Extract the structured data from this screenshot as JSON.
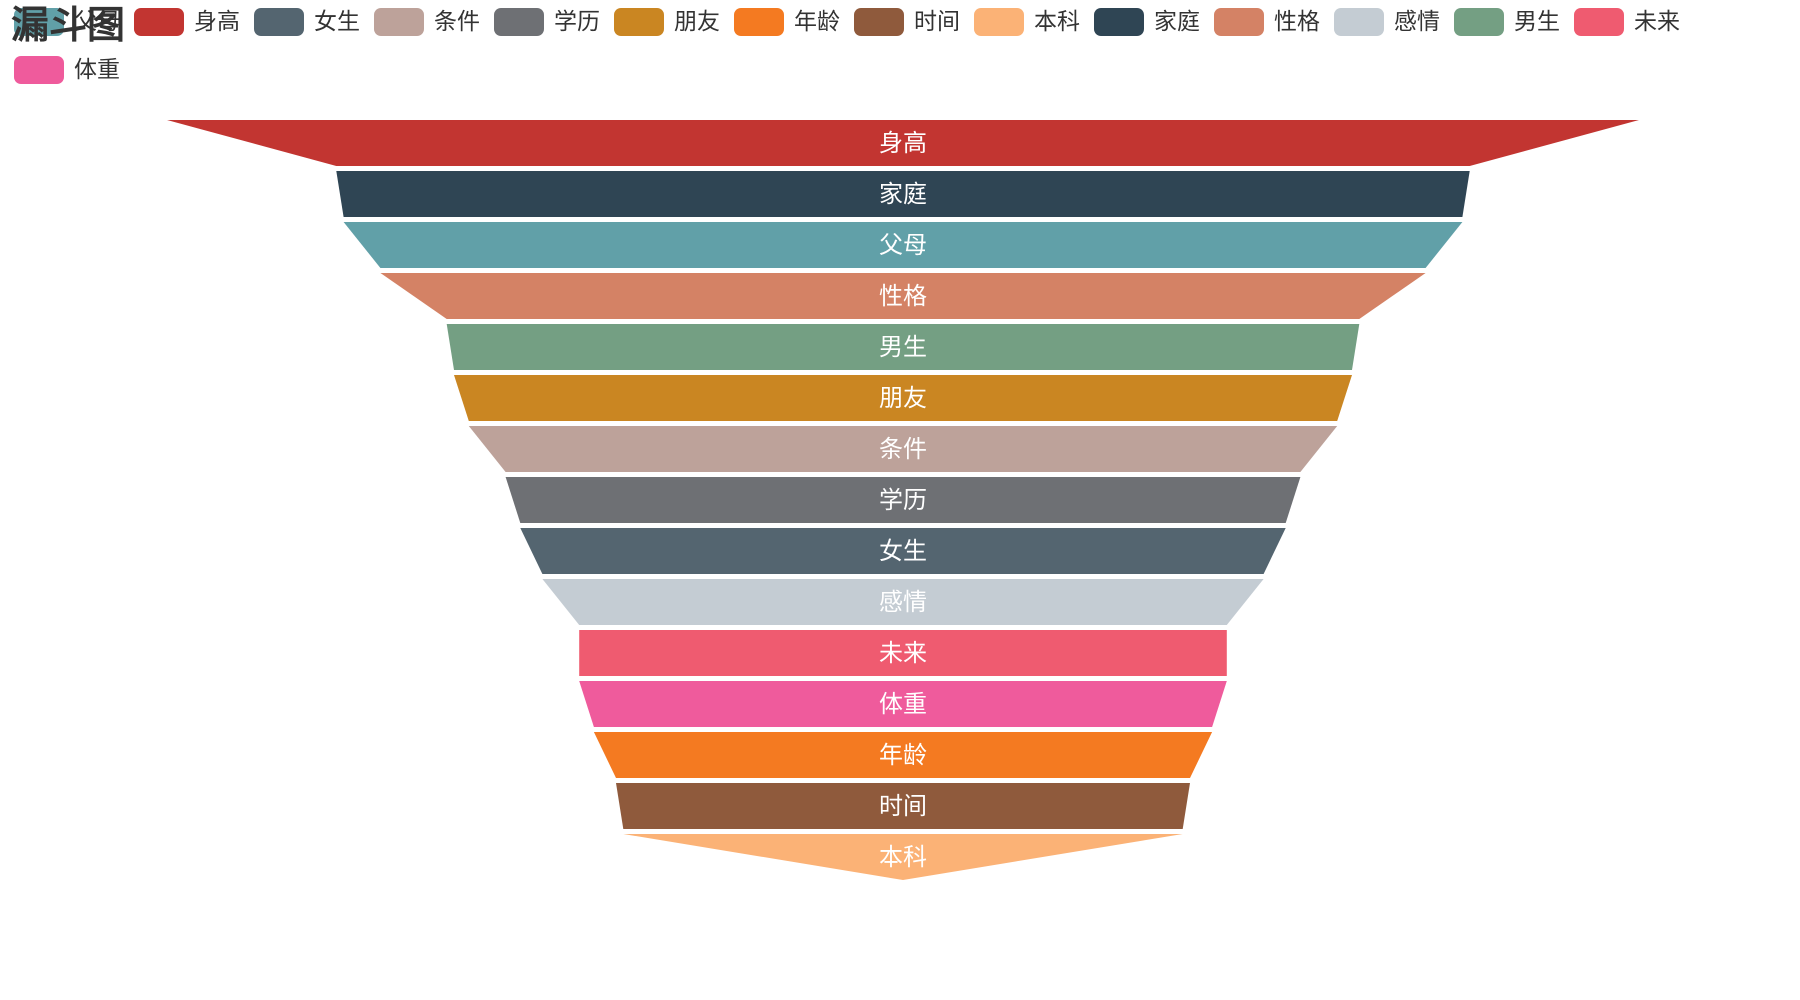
{
  "chart_data": {
    "type": "funnel",
    "title": "漏斗图",
    "legend_position": "top",
    "legend": [
      {
        "name": "父母",
        "color": "#61a0a8"
      },
      {
        "name": "身高",
        "color": "#c23531"
      },
      {
        "name": "女生",
        "color": "#546570"
      },
      {
        "name": "条件",
        "color": "#bda29a"
      },
      {
        "name": "学历",
        "color": "#6e7074"
      },
      {
        "name": "朋友",
        "color": "#ca8622"
      },
      {
        "name": "年龄",
        "color": "#f47a21"
      },
      {
        "name": "时间",
        "color": "#8f5a3c"
      },
      {
        "name": "本科",
        "color": "#fbb276"
      },
      {
        "name": "家庭",
        "color": "#2f4554"
      },
      {
        "name": "性格",
        "color": "#d48265"
      },
      {
        "name": "感情",
        "color": "#c4ccd3"
      },
      {
        "name": "男生",
        "color": "#749f83"
      },
      {
        "name": "未来",
        "color": "#ef5b70"
      },
      {
        "name": "体重",
        "color": "#ef5b9c"
      }
    ],
    "series": [
      {
        "name": "身高",
        "value": 100,
        "color": "#c23531"
      },
      {
        "name": "家庭",
        "value": 77,
        "color": "#2f4554"
      },
      {
        "name": "父母",
        "value": 76,
        "color": "#61a0a8"
      },
      {
        "name": "性格",
        "value": 71,
        "color": "#d48265"
      },
      {
        "name": "男生",
        "value": 62,
        "color": "#749f83"
      },
      {
        "name": "朋友",
        "value": 61,
        "color": "#ca8622"
      },
      {
        "name": "条件",
        "value": 59,
        "color": "#bda29a"
      },
      {
        "name": "学历",
        "value": 54,
        "color": "#6e7074"
      },
      {
        "name": "女生",
        "value": 52,
        "color": "#546570"
      },
      {
        "name": "感情",
        "value": 49,
        "color": "#c4ccd3"
      },
      {
        "name": "未来",
        "value": 44,
        "color": "#ef5b70"
      },
      {
        "name": "体重",
        "value": 44,
        "color": "#ef5b9c"
      },
      {
        "name": "年龄",
        "value": 42,
        "color": "#f47a21"
      },
      {
        "name": "时间",
        "value": 39,
        "color": "#8f5a3c"
      },
      {
        "name": "本科",
        "value": 38,
        "color": "#fbb276"
      }
    ],
    "sort": "descending",
    "label_position": "inside",
    "label_color": "#ffffff",
    "gap_color": "#ffffff"
  }
}
